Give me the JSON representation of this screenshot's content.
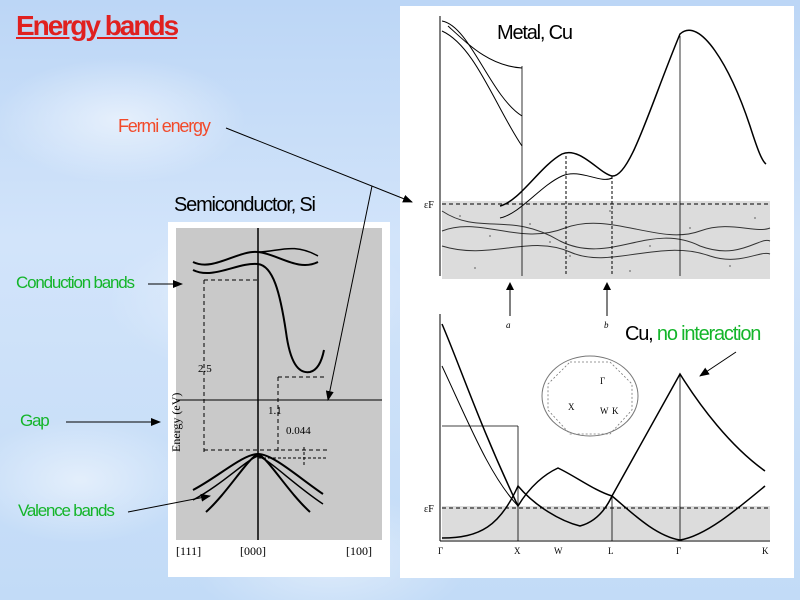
{
  "title": "Energy bands",
  "labels": {
    "fermi": "Fermi energy",
    "semiconductor": "Semiconductor, Si",
    "metal": "Metal, Cu",
    "cu_prefix": "Cu, ",
    "cu_no_interaction": "no interaction",
    "conduction": "Conduction bands",
    "gap": "Gap",
    "valence": "Valence bands"
  },
  "si_figure": {
    "ylabel": "Energy (eV)",
    "values": [
      "2.5",
      "1.1",
      "0.044"
    ],
    "ticks": [
      "[111]",
      "[000]",
      "[100]"
    ]
  },
  "cu_figure": {
    "fermi_symbol": "εF",
    "arrow_labels": [
      "a",
      "b"
    ],
    "ticks": [
      "Γ",
      "X",
      "W",
      "L",
      "Γ",
      "K"
    ],
    "bz_labels": [
      "Γ",
      "X",
      "W",
      "K"
    ]
  },
  "colors": {
    "title": "#e0201f",
    "fermi_label": "#f24a2a",
    "green_labels": "#14b52a"
  }
}
